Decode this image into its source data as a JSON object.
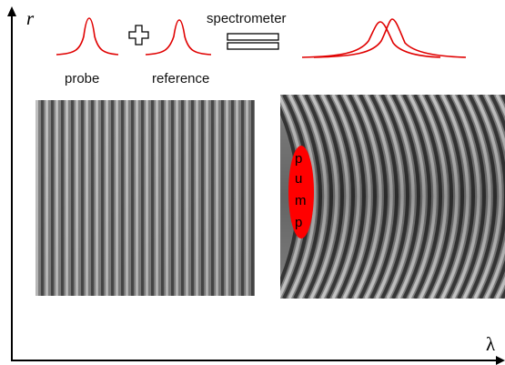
{
  "axes": {
    "y_label": "r",
    "x_label": "λ"
  },
  "labels": {
    "probe": "probe",
    "reference": "reference",
    "spectrometer": "spectrometer"
  },
  "pump": {
    "letters": [
      "p",
      "u",
      "m",
      "p"
    ],
    "color": "#ff0000"
  },
  "colors": {
    "pulse": "#e00000",
    "axis": "#000000"
  },
  "icons": [
    "plus-icon",
    "spectrometer-icon"
  ]
}
